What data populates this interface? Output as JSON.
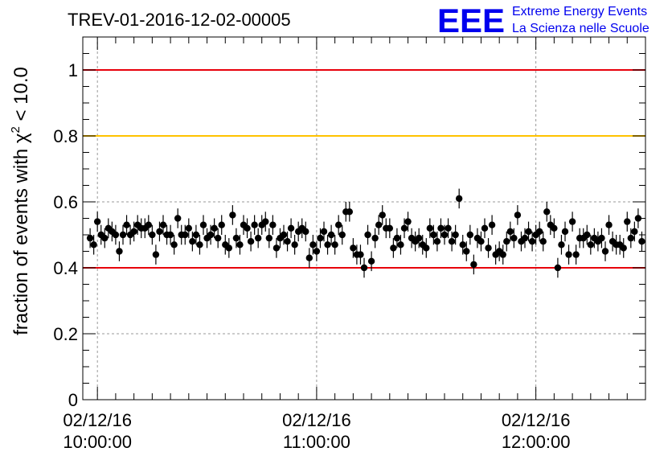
{
  "chart_data": {
    "type": "scatter",
    "title": "TREV-01-2016-12-02-00005",
    "ylabel": "fraction of events with χ² < 10.0",
    "ylabel_parts": {
      "prefix": "fraction of events with ",
      "symbol": "χ",
      "superscript": "2",
      "suffix": " < 10.0"
    },
    "xlabel": "",
    "ylim": [
      0,
      1.1
    ],
    "xlim_minutes": [
      -4,
      150
    ],
    "yticks": [
      0,
      0.2,
      0.4,
      0.6,
      0.8,
      1
    ],
    "ytick_labels": [
      "0",
      "0.2",
      "0.4",
      "0.6",
      "0.8",
      "1"
    ],
    "xticks": [
      {
        "minute": 0,
        "date": "02/12/16",
        "time": "10:00:00"
      },
      {
        "minute": 60,
        "date": "02/12/16",
        "time": "11:00:00"
      },
      {
        "minute": 120,
        "date": "02/12/16",
        "time": "12:00:00"
      }
    ],
    "grid": true,
    "reference_lines": [
      {
        "y": 1.0,
        "color": "#e8000b"
      },
      {
        "y": 0.8,
        "color": "#ffc200"
      },
      {
        "y": 0.4,
        "color": "#e8000b"
      }
    ],
    "marker_color": "#000000",
    "error_bar": 0.03,
    "series": [
      {
        "x_start_minute": -2,
        "x_step_minutes": 1,
        "y": [
          0.49,
          0.47,
          0.54,
          0.5,
          0.49,
          0.52,
          0.51,
          0.5,
          0.45,
          0.5,
          0.53,
          0.5,
          0.51,
          0.53,
          0.52,
          0.52,
          0.53,
          0.5,
          0.44,
          0.51,
          0.53,
          0.5,
          0.5,
          0.47,
          0.55,
          0.5,
          0.5,
          0.52,
          0.48,
          0.5,
          0.47,
          0.53,
          0.49,
          0.5,
          0.52,
          0.49,
          0.53,
          0.47,
          0.46,
          0.56,
          0.49,
          0.47,
          0.53,
          0.52,
          0.48,
          0.53,
          0.49,
          0.53,
          0.54,
          0.49,
          0.53,
          0.46,
          0.49,
          0.5,
          0.48,
          0.52,
          0.47,
          0.51,
          0.52,
          0.51,
          0.43,
          0.47,
          0.45,
          0.49,
          0.51,
          0.47,
          0.5,
          0.47,
          0.53,
          0.5,
          0.57,
          0.57,
          0.46,
          0.44,
          0.44,
          0.4,
          0.5,
          0.42,
          0.49,
          0.53,
          0.56,
          0.52,
          0.52,
          0.46,
          0.49,
          0.47,
          0.52,
          0.54,
          0.49,
          0.48,
          0.49,
          0.47,
          0.46,
          0.52,
          0.5,
          0.48,
          0.52,
          0.5,
          0.52,
          0.48,
          0.5,
          0.61,
          0.47,
          0.45,
          0.5,
          0.41,
          0.49,
          0.48,
          0.52,
          0.46,
          0.53,
          0.44,
          0.45,
          0.44,
          0.48,
          0.51,
          0.49,
          0.56,
          0.48,
          0.49,
          0.51,
          0.48,
          0.5,
          0.51,
          0.48,
          0.57,
          0.53,
          0.52,
          0.4,
          0.47,
          0.51,
          0.44,
          0.54,
          0.44,
          0.49,
          0.49,
          0.5,
          0.47,
          0.49,
          0.48,
          0.49,
          0.45,
          0.53,
          0.48,
          0.47,
          0.47,
          0.46,
          0.54,
          0.49,
          0.51,
          0.55,
          0.48,
          0.52,
          0.48,
          0.49
        ]
      }
    ]
  },
  "logo": {
    "mark": "EEE",
    "line1": "Extreme Energy Events",
    "line2": "La Scienza nelle Scuole",
    "color": "#0000ee"
  }
}
